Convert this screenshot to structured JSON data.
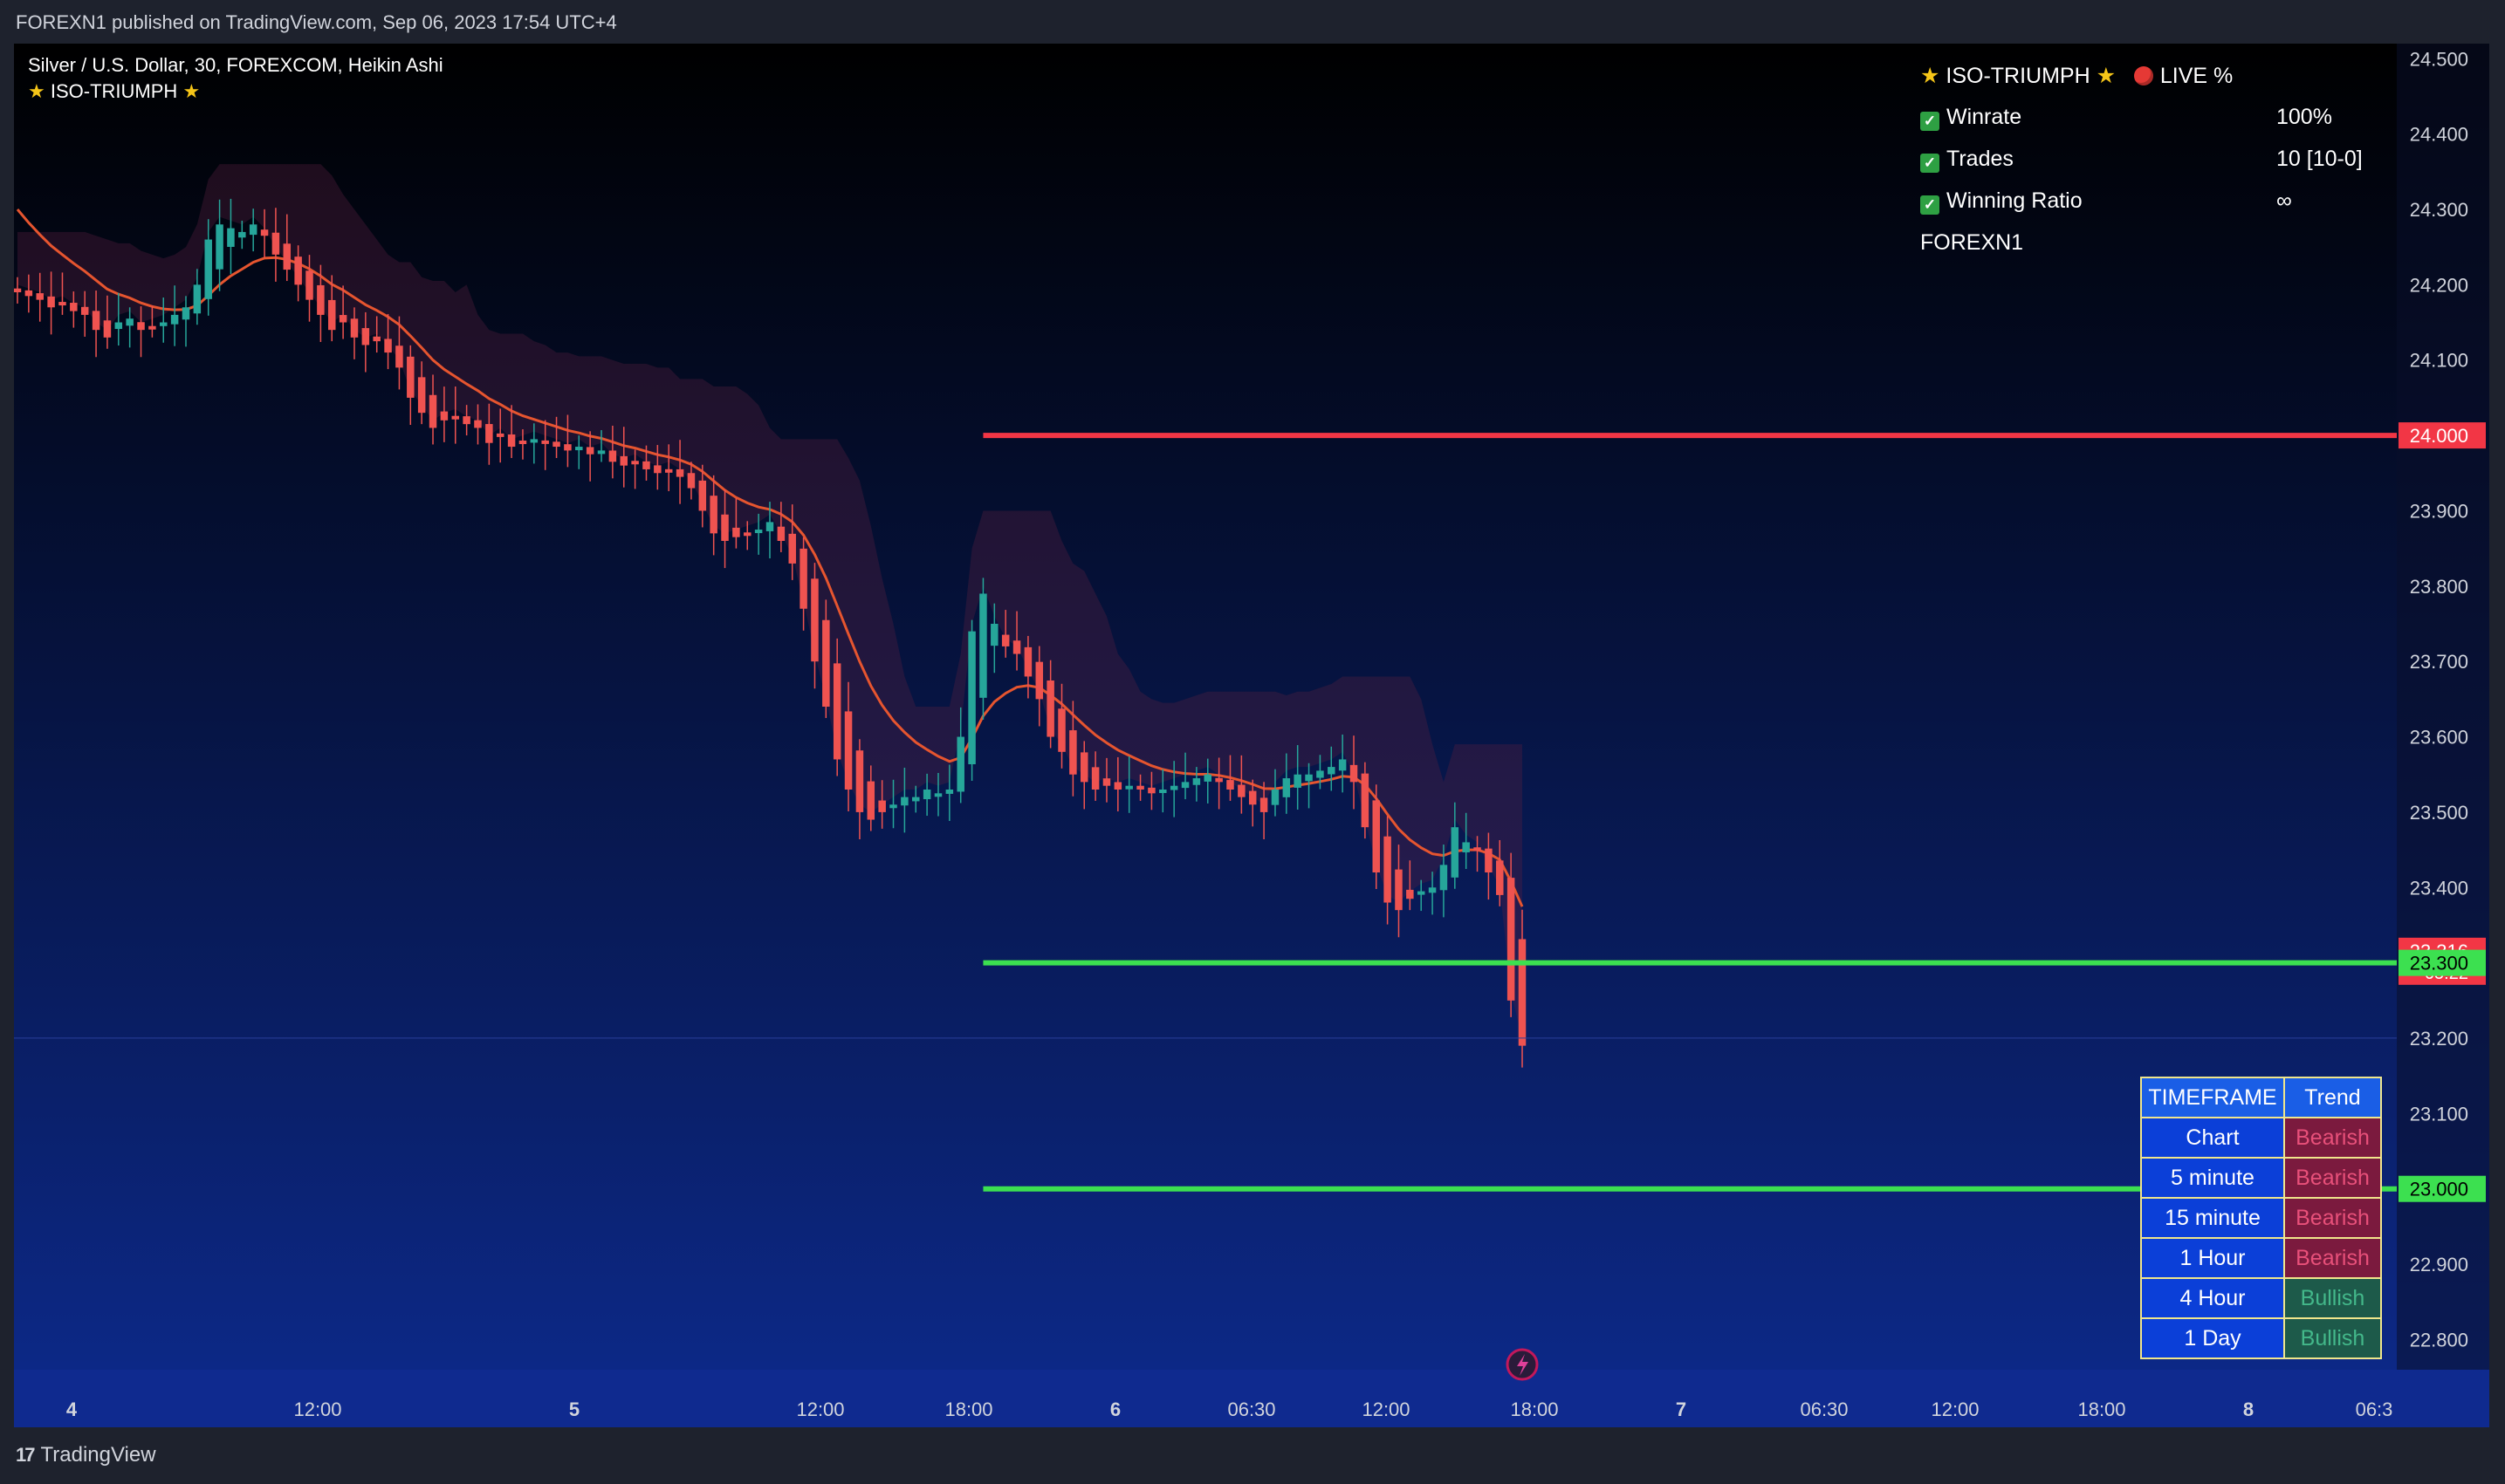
{
  "publish_line": "FOREXN1 published on TradingView.com, Sep 06, 2023 17:54 UTC+4",
  "legend": {
    "symbol": "Silver / U.S. Dollar, 30, FOREXCOM, Heikin Ashi",
    "indicator": "ISO-TRIUMPH"
  },
  "stats_panel": {
    "title": "ISO-TRIUMPH",
    "live": "LIVE %",
    "rows": [
      {
        "label": "Winrate",
        "value": "100%"
      },
      {
        "label": "Trades",
        "value": "10 [10-0]"
      },
      {
        "label": "Winning Ratio",
        "value": "∞"
      }
    ],
    "author": "FOREXN1"
  },
  "timeframe_table": {
    "headers": [
      "TIMEFRAME",
      "Trend"
    ],
    "rows": [
      {
        "tf": "Chart",
        "trend": "Bearish"
      },
      {
        "tf": "5 minute",
        "trend": "Bearish"
      },
      {
        "tf": "15 minute",
        "trend": "Bearish"
      },
      {
        "tf": "1 Hour",
        "trend": "Bearish"
      },
      {
        "tf": "4 Hour",
        "trend": "Bullish"
      },
      {
        "tf": "1 Day",
        "trend": "Bullish"
      }
    ]
  },
  "footer_brand": "TradingView",
  "colors": {
    "bull": "#26a69a",
    "bear": "#ef5350",
    "resistance": "#f23645",
    "support": "#3ce050",
    "bg_top": "#000000",
    "bg_bottom": "#0d2a8c"
  },
  "chart_data": {
    "type": "candlestick",
    "style": "Heikin Ashi",
    "y_range": [
      22.76,
      24.52
    ],
    "y_ticks": [
      "24.500",
      "24.400",
      "24.300",
      "24.200",
      "24.100",
      "23.900",
      "23.800",
      "23.700",
      "23.600",
      "23.500",
      "23.400",
      "23.200",
      "23.100",
      "22.900",
      "22.800"
    ],
    "x_ticks": [
      "4",
      "12:00",
      "5",
      "12:00",
      "18:00",
      "6",
      "06:30",
      "12:00",
      "18:00",
      "7",
      "06:30",
      "12:00",
      "18:00",
      "8",
      "06:3"
    ],
    "price_labels": [
      {
        "text": "24.000",
        "price": 24.0,
        "kind": "resistance"
      },
      {
        "text": "23.316",
        "sub": "05:22",
        "price": 23.316,
        "kind": "last"
      },
      {
        "text": "23.300",
        "price": 23.3,
        "kind": "support"
      },
      {
        "text": "23.000",
        "price": 23.0,
        "kind": "support"
      }
    ],
    "levels": [
      {
        "price": 24.0,
        "kind": "resistance",
        "start_bar": 86
      },
      {
        "price": 23.3,
        "kind": "support",
        "start_bar": 86
      },
      {
        "price": 23.0,
        "kind": "support",
        "start_bar": 86
      }
    ],
    "current_price_line": 23.316,
    "ha_closes": [
      24.19,
      24.185,
      24.18,
      24.17,
      24.175,
      24.165,
      24.16,
      24.14,
      24.13,
      24.15,
      24.155,
      24.14,
      24.145,
      24.15,
      24.16,
      24.17,
      24.2,
      24.26,
      24.28,
      24.275,
      24.27,
      24.28,
      24.265,
      24.24,
      24.22,
      24.2,
      24.18,
      24.16,
      24.14,
      24.15,
      24.13,
      24.12,
      24.125,
      24.11,
      24.09,
      24.05,
      24.03,
      24.01,
      24.02,
      24.025,
      24.015,
      24.01,
      23.99,
      24.0,
      23.985,
      23.99,
      23.995,
      23.99,
      23.985,
      23.98,
      23.985,
      23.975,
      23.98,
      23.965,
      23.96,
      23.965,
      23.955,
      23.95,
      23.955,
      23.945,
      23.93,
      23.9,
      23.87,
      23.86,
      23.865,
      23.87,
      23.875,
      23.885,
      23.86,
      23.83,
      23.77,
      23.7,
      23.64,
      23.57,
      23.53,
      23.5,
      23.49,
      23.5,
      23.51,
      23.52,
      23.52,
      23.53,
      23.525,
      23.53,
      23.6,
      23.74,
      23.79,
      23.75,
      23.72,
      23.71,
      23.68,
      23.65,
      23.6,
      23.58,
      23.55,
      23.54,
      23.53,
      23.535,
      23.53,
      23.535,
      23.53,
      23.525,
      23.53,
      23.535,
      23.54,
      23.545,
      23.55,
      23.54,
      23.53,
      23.52,
      23.51,
      23.5,
      23.53,
      23.545,
      23.55,
      23.55,
      23.555,
      23.56,
      23.57,
      23.54,
      23.48,
      23.42,
      23.38,
      23.37,
      23.385,
      23.395,
      23.4,
      23.43,
      23.48,
      23.46,
      23.45,
      23.42,
      23.39,
      23.25,
      23.19
    ],
    "ema_start": 24.3,
    "ema_end": 23.4
  }
}
